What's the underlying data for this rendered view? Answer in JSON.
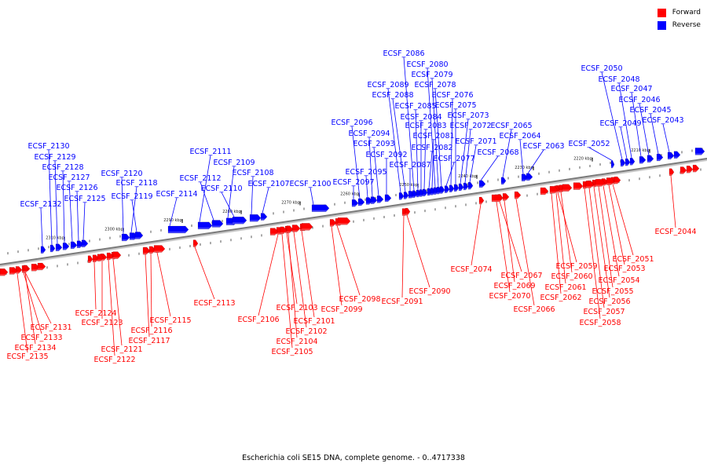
{
  "caption": "Escherichia coli SE15 DNA, complete genome. - 0..4717338",
  "legend": [
    {
      "label": "Forward",
      "color": "#ff0000"
    },
    {
      "label": "Reverse",
      "color": "#0000ff"
    }
  ],
  "colors": {
    "forward": "#ff0000",
    "reverse": "#0000ff",
    "axis": "#7a7a7a"
  },
  "ticks": [
    "2310 kbp",
    "2300 kbp",
    "2290 kbp",
    "2280 kbp",
    "2270 kbp",
    "2260 kbp",
    "2250 kbp",
    "2240 kbp",
    "2230 kbp",
    "2220 kbp",
    "2210 kbp"
  ],
  "reverse_genes": [
    "ECSF_2132",
    "ECSF_2130",
    "ECSF_2129",
    "ECSF_2128",
    "ECSF_2127",
    "ECSF_2126",
    "ECSF_2125",
    "ECSF_2120",
    "ECSF_2118",
    "ECSF_2119",
    "ECSF_2114",
    "ECSF_2111",
    "ECSF_2112",
    "ECSF_2109",
    "ECSF_2110",
    "ECSF_2108",
    "ECSF_2107",
    "ECSF_2100",
    "ECSF_2097",
    "ECSF_2096",
    "ECSF_2095",
    "ECSF_2094",
    "ECSF_2093",
    "ECSF_2092",
    "ECSF_2089",
    "ECSF_2088",
    "ECSF_2087",
    "ECSF_2086",
    "ECSF_2085",
    "ECSF_2084",
    "ECSF_2083",
    "ECSF_2082",
    "ECSF_2081",
    "ECSF_2080",
    "ECSF_2079",
    "ECSF_2078",
    "ECSF_2077",
    "ECSF_2076",
    "ECSF_2075",
    "ECSF_2073",
    "ECSF_2072",
    "ECSF_2071",
    "ECSF_2068",
    "ECSF_2065",
    "ECSF_2064",
    "ECSF_2063",
    "ECSF_2052",
    "ECSF_2050",
    "ECSF_2049",
    "ECSF_2048",
    "ECSF_2047",
    "ECSF_2046",
    "ECSF_2045",
    "ECSF_2043"
  ],
  "forward_genes": [
    "ECSF_2131",
    "ECSF_2133",
    "ECSF_2134",
    "ECSF_2135",
    "ECSF_2124",
    "ECSF_2123",
    "ECSF_2121",
    "ECSF_2122",
    "ECSF_2115",
    "ECSF_2116",
    "ECSF_2117",
    "ECSF_2113",
    "ECSF_2106",
    "ECSF_2103",
    "ECSF_2101",
    "ECSF_2102",
    "ECSF_2104",
    "ECSF_2105",
    "ECSF_2098",
    "ECSF_2099",
    "ECSF_2091",
    "ECSF_2090",
    "ECSF_2074",
    "ECSF_2067",
    "ECSF_2069",
    "ECSF_2070",
    "ECSF_2066",
    "ECSF_2059",
    "ECSF_2060",
    "ECSF_2061",
    "ECSF_2062",
    "ECSF_2051",
    "ECSF_2053",
    "ECSF_2054",
    "ECSF_2055",
    "ECSF_2056",
    "ECSF_2057",
    "ECSF_2058",
    "ECSF_2044"
  ]
}
